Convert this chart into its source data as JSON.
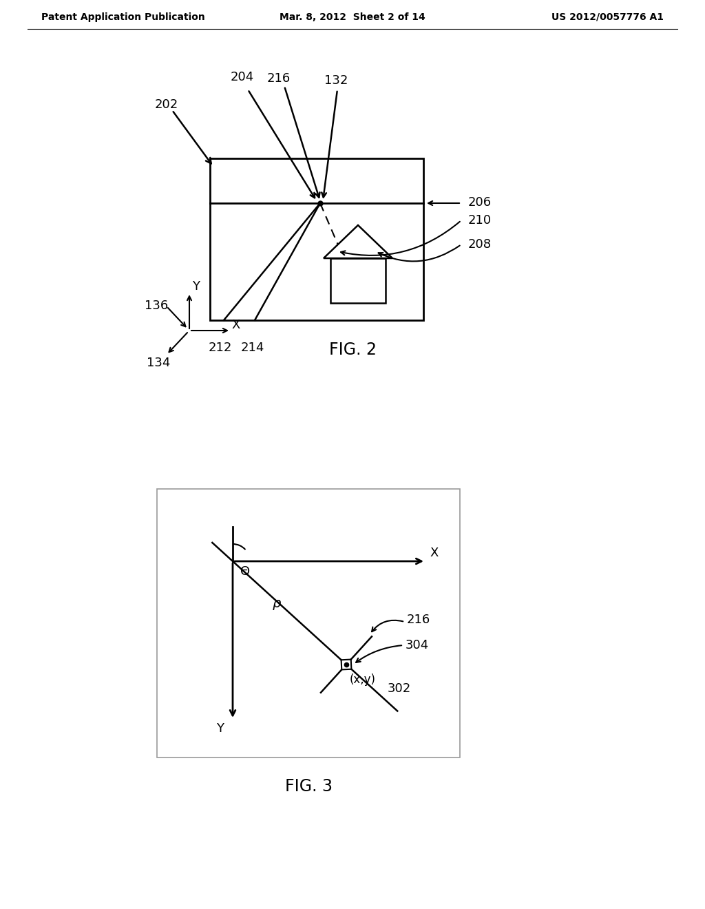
{
  "bg_color": "#ffffff",
  "header_left": "Patent Application Publication",
  "header_mid": "Mar. 8, 2012  Sheet 2 of 14",
  "header_right": "US 2012/0057776 A1",
  "fig2_caption": "FIG. 2",
  "fig3_caption": "FIG. 3",
  "lc": "#000000",
  "gray": "#aaaaaa",
  "fs_header": 10,
  "fs_label": 13,
  "fs_caption": 17
}
